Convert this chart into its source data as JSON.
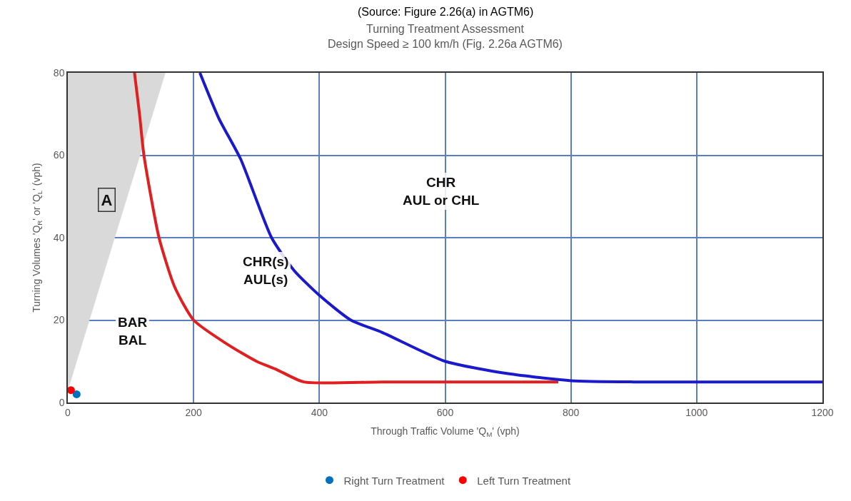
{
  "chart_data": {
    "type": "line",
    "title": "Turning Treatment Assessment",
    "subtitle": "Design Speed ≥ 100 km/h (Fig. 2.26a AGTM6)",
    "xlabel": "Through Traffic Volume 'Q$_{M}$' (vph)",
    "ylabel": "Turning Volumes 'Q$_{R}$' or 'Q$_{L}$' (vph)",
    "xlim": [
      0,
      1200
    ],
    "xticks": [
      0,
      200,
      400,
      600,
      800,
      1000,
      1200
    ],
    "ylim": [
      0,
      80
    ],
    "yticks": [
      0,
      20,
      40,
      60,
      80
    ],
    "grid": true,
    "legend": "bottom",
    "series": [
      {
        "type": "area",
        "color": "#d9d9d9",
        "x": [
          0,
          155
        ],
        "values": [
          3,
          80
        ]
      },
      {
        "color": "#e02020",
        "line_style": "solid",
        "x": [
          106,
          114,
          121,
          145,
          170,
          200,
          255,
          300,
          332,
          375,
          500,
          700,
          780
        ],
        "values": [
          80,
          70,
          60,
          40,
          28,
          20,
          14,
          10,
          8,
          5,
          5,
          5,
          5
        ]
      },
      {
        "color": "#1a1acc",
        "line_style": "solid",
        "x": [
          210,
          240,
          275,
          324,
          360,
          400,
          450,
          500,
          600,
          700,
          800,
          900,
          1000,
          1200
        ],
        "values": [
          80,
          69,
          59,
          40,
          32,
          26,
          20,
          17,
          10,
          7,
          5.3,
          5,
          5,
          5
        ]
      },
      {
        "type": "scatter",
        "name": "Right Turn Treatment",
        "color": "#0070c0",
        "marker": "circle",
        "x": [
          14
        ],
        "values": [
          2
        ]
      },
      {
        "type": "scatter",
        "name": "Left Turn Treatment",
        "color": "#ff0000",
        "marker": "circle",
        "x": [
          5
        ],
        "values": [
          3
        ]
      }
    ],
    "annotations": [
      "A",
      "BAR\nBAL",
      "CHR(s)\nAUL(s)",
      "CHR\nAUL or CHL",
      "(Source: Figure 2.26(a) in AGTM6)"
    ]
  }
}
